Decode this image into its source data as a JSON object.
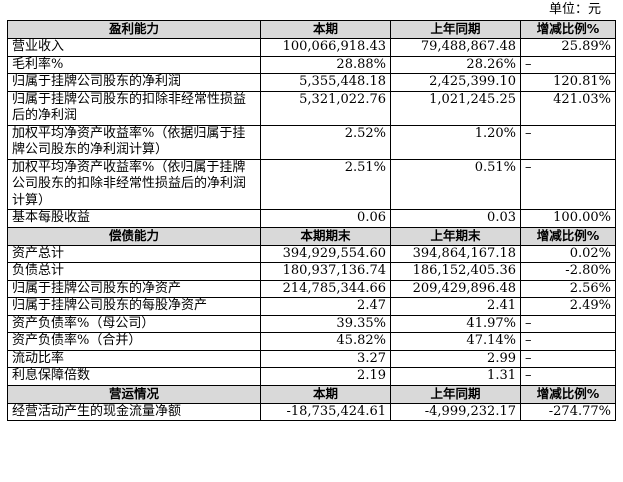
{
  "unit": "单位：元",
  "sections": [
    {
      "headers": [
        "盈利能力",
        "本期",
        "上年同期",
        "增减比例%"
      ],
      "rows": [
        {
          "label": "营业收入",
          "a": "100,066,918.43",
          "b": "79,488,867.48",
          "c": "25.89%"
        },
        {
          "label": "毛利率%",
          "a": "28.88%",
          "b": "28.26%",
          "c": "–"
        },
        {
          "label": "归属于挂牌公司股东的净利润",
          "a": "5,355,448.18",
          "b": "2,425,399.10",
          "c": "120.81%"
        },
        {
          "label": "归属于挂牌公司股东的扣除非经常性损益后的净利润",
          "a": "5,321,022.76",
          "b": "1,021,245.25",
          "c": "421.03%"
        },
        {
          "label": "加权平均净资产收益率%（依据归属于挂牌公司股东的净利润计算）",
          "a": "2.52%",
          "b": "1.20%",
          "c": "–"
        },
        {
          "label": "加权平均净资产收益率%（依归属于挂牌公司股东的扣除非经常性损益后的净利润计算）",
          "a": "2.51%",
          "b": "0.51%",
          "c": "–"
        },
        {
          "label": "基本每股收益",
          "a": "0.06",
          "b": "0.03",
          "c": "100.00%"
        }
      ]
    },
    {
      "headers": [
        "偿债能力",
        "本期期末",
        "上年期末",
        "增减比例%"
      ],
      "rows": [
        {
          "label": "资产总计",
          "a": "394,929,554.60",
          "b": "394,864,167.18",
          "c": "0.02%"
        },
        {
          "label": "负债总计",
          "a": "180,937,136.74",
          "b": "186,152,405.36",
          "c": "-2.80%"
        },
        {
          "label": "归属于挂牌公司股东的净资产",
          "a": "214,785,344.66",
          "b": "209,429,896.48",
          "c": "2.56%"
        },
        {
          "label": "归属于挂牌公司股东的每股净资产",
          "a": "2.47",
          "b": "2.41",
          "c": "2.49%"
        },
        {
          "label": "资产负债率%（母公司）",
          "a": "39.35%",
          "b": "41.97%",
          "c": "–"
        },
        {
          "label": "资产负债率%（合并）",
          "a": "45.82%",
          "b": "47.14%",
          "c": "–"
        },
        {
          "label": "流动比率",
          "a": "3.27",
          "b": "2.99",
          "c": "–"
        },
        {
          "label": "利息保障倍数",
          "a": "2.19",
          "b": "1.31",
          "c": "–"
        }
      ]
    },
    {
      "headers": [
        "营运情况",
        "本期",
        "上年同期",
        "增减比例%"
      ],
      "rows": [
        {
          "label": "经营活动产生的现金流量净额",
          "a": "-18,735,424.61",
          "b": "-4,999,232.17",
          "c": "-274.77%"
        }
      ]
    }
  ]
}
